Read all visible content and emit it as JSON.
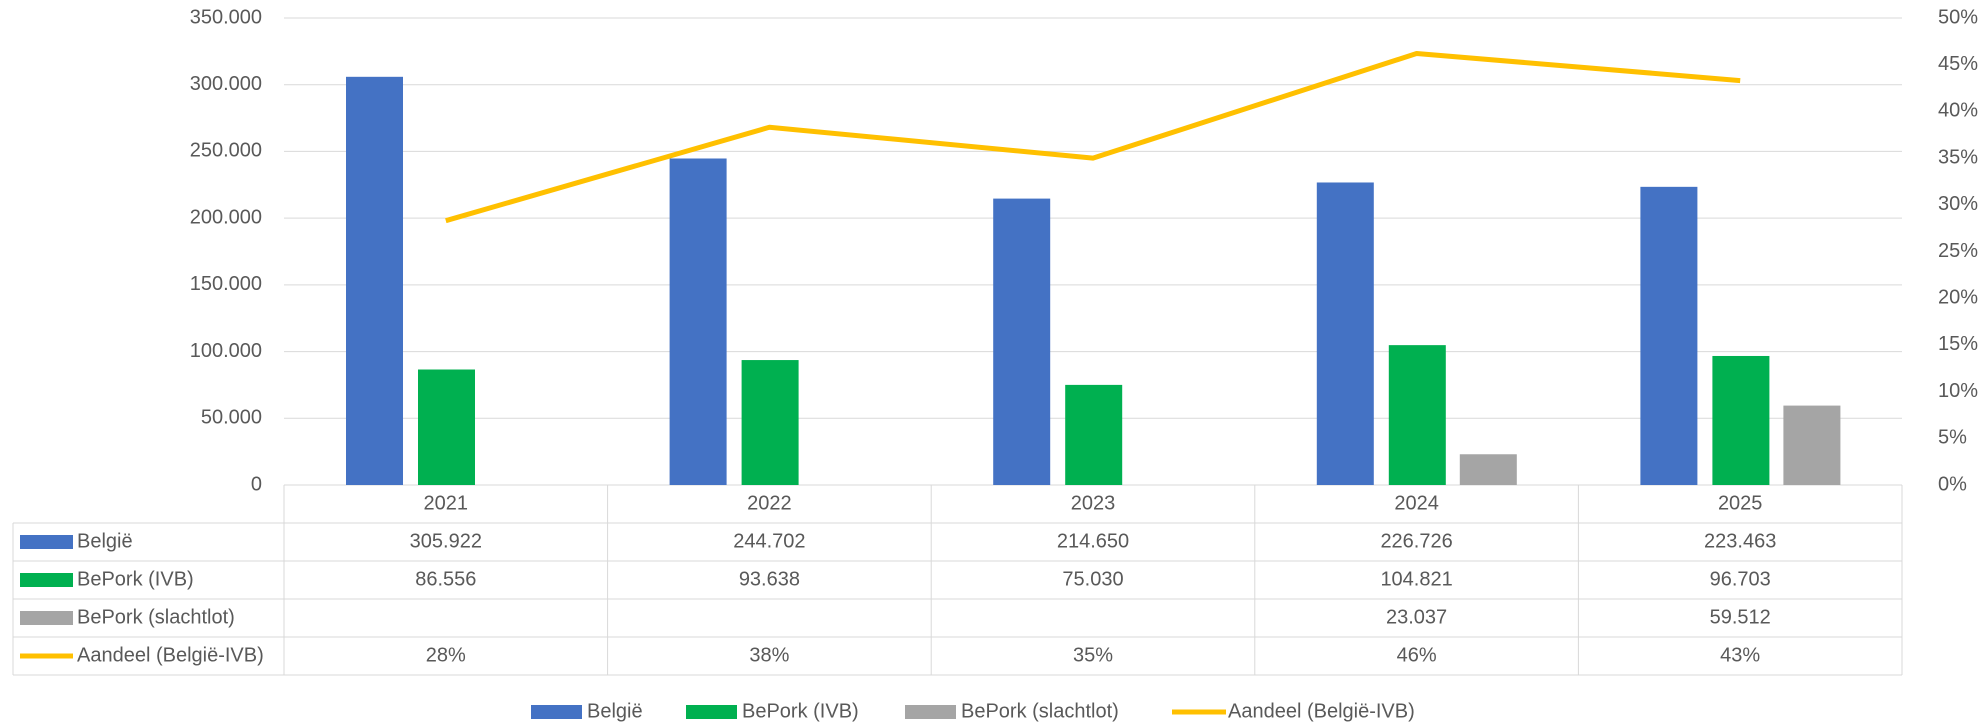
{
  "chart_data": {
    "type": "bar",
    "categories": [
      "2021",
      "2022",
      "2023",
      "2024",
      "2025"
    ],
    "series": [
      {
        "name": "België",
        "color": "#4472c4",
        "values": [
          305922,
          244702,
          214650,
          226726,
          223463
        ],
        "value_labels": [
          "305.922",
          "244.702",
          "214.650",
          "226.726",
          "223.463"
        ]
      },
      {
        "name": "BePork (IVB)",
        "color": "#00b050",
        "values": [
          86556,
          93638,
          75030,
          104821,
          96703
        ],
        "value_labels": [
          "86.556",
          "93.638",
          "75.030",
          "104.821",
          "96.703"
        ]
      },
      {
        "name": "BePork (slachtlot)",
        "color": "#a5a5a5",
        "values": [
          null,
          null,
          null,
          23037,
          59512
        ],
        "value_labels": [
          null,
          null,
          null,
          "23.037",
          "59.512"
        ]
      },
      {
        "name": "Aandeel (België-IVB)",
        "color": "#ffc000",
        "type": "line",
        "axis": "y2",
        "values": [
          28.3,
          38.3,
          35.0,
          46.2,
          43.3
        ],
        "value_labels": [
          "28%",
          "38%",
          "35%",
          "46%",
          "43%"
        ]
      }
    ],
    "ylim": [
      0,
      350000
    ],
    "yticks": [
      0,
      {
        "value": 50000,
        "label": "50.000"
      },
      {
        "value": 100000,
        "label": "100.000"
      },
      {
        "value": 150000,
        "label": "150.000"
      },
      {
        "value": 200000,
        "label": "200.000"
      },
      {
        "value": 250000,
        "label": "250.000"
      },
      {
        "value": 300000,
        "label": "300.000"
      },
      {
        "value": 350000,
        "label": "350.000"
      }
    ],
    "y2lim": [
      0,
      50
    ],
    "y2ticks": [
      {
        "value": 0,
        "label": "0%"
      },
      {
        "value": 5,
        "label": "5%"
      },
      {
        "value": 10,
        "label": "10%"
      },
      {
        "value": 15,
        "label": "15%"
      },
      {
        "value": 20,
        "label": "20%"
      },
      {
        "value": 25,
        "label": "25%"
      },
      {
        "value": 30,
        "label": "30%"
      },
      {
        "value": 35,
        "label": "35%"
      },
      {
        "value": 40,
        "label": "40%"
      },
      {
        "value": 45,
        "label": "45%"
      },
      {
        "value": 50,
        "label": "50%"
      }
    ],
    "grid": true,
    "legend": "bottom"
  }
}
